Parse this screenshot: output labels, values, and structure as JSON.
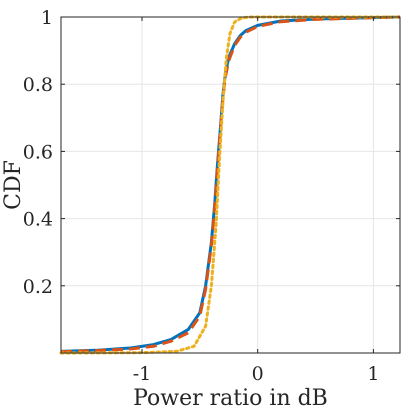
{
  "chart_data": {
    "type": "line",
    "xlabel": "Power ratio in dB",
    "ylabel": "CDF",
    "xlim": [
      -1.7,
      1.23
    ],
    "ylim": [
      0,
      1
    ],
    "grid": true,
    "x_ticks": [
      {
        "value": -1,
        "label": "-1"
      },
      {
        "value": 0,
        "label": "0"
      },
      {
        "value": 1,
        "label": "1"
      }
    ],
    "y_ticks": [
      {
        "value": 0.2,
        "label": "0.2"
      },
      {
        "value": 0.4,
        "label": "0.4"
      },
      {
        "value": 0.6,
        "label": "0.6"
      },
      {
        "value": 0.8,
        "label": "0.8"
      },
      {
        "value": 1,
        "label": "1"
      }
    ],
    "series": [
      {
        "color": "#0072BD",
        "style": "solid",
        "x": [
          -1.7,
          -1.4,
          -1.1,
          -0.9,
          -0.75,
          -0.6,
          -0.5,
          -0.45,
          -0.4,
          -0.37,
          -0.35,
          -0.32,
          -0.3,
          -0.28,
          -0.25,
          -0.2,
          -0.15,
          -0.1,
          0,
          0.2,
          0.5,
          1.0,
          1.23
        ],
        "y": [
          0.005,
          0.008,
          0.015,
          0.025,
          0.04,
          0.07,
          0.12,
          0.2,
          0.33,
          0.45,
          0.55,
          0.68,
          0.77,
          0.83,
          0.88,
          0.92,
          0.945,
          0.96,
          0.975,
          0.988,
          0.994,
          0.998,
          1.0
        ]
      },
      {
        "color": "#D95319",
        "style": "dashed",
        "x": [
          -1.7,
          -1.4,
          -1.1,
          -0.9,
          -0.75,
          -0.6,
          -0.5,
          -0.45,
          -0.4,
          -0.37,
          -0.35,
          -0.32,
          -0.3,
          -0.28,
          -0.25,
          -0.2,
          -0.15,
          -0.1,
          0,
          0.2,
          0.5,
          1.0,
          1.23
        ],
        "y": [
          0.004,
          0.007,
          0.012,
          0.02,
          0.035,
          0.06,
          0.11,
          0.19,
          0.32,
          0.44,
          0.54,
          0.67,
          0.76,
          0.82,
          0.87,
          0.915,
          0.94,
          0.955,
          0.972,
          0.986,
          0.993,
          0.998,
          1.0
        ]
      },
      {
        "color": "#EDB120",
        "style": "dotted",
        "x": [
          -1.7,
          -1.0,
          -0.7,
          -0.55,
          -0.45,
          -0.4,
          -0.36,
          -0.33,
          -0.3,
          -0.27,
          -0.24,
          -0.2,
          -0.15,
          -0.1,
          -0.05,
          0.1,
          0.5,
          1.23
        ],
        "y": [
          0.0,
          0.001,
          0.005,
          0.02,
          0.08,
          0.2,
          0.38,
          0.58,
          0.75,
          0.88,
          0.95,
          0.985,
          0.995,
          0.999,
          1.0,
          1.0,
          1.0,
          1.0
        ]
      }
    ]
  }
}
